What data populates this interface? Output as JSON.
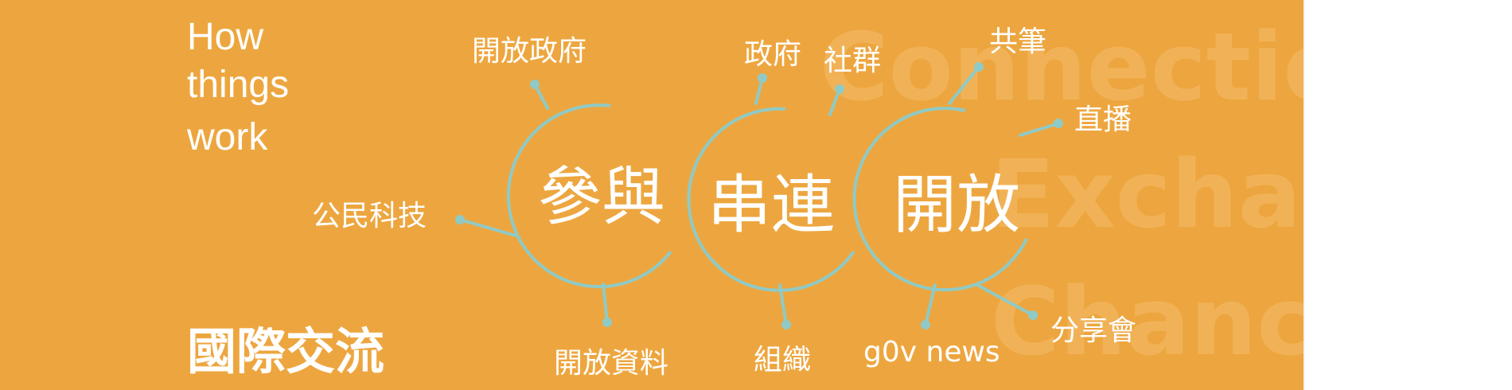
{
  "title_lines": [
    "How",
    "things",
    "work"
  ],
  "ghost_words": [
    "Connection",
    "Exchange",
    "Chance"
  ],
  "hub_words": [
    "參與",
    "串連",
    "開放"
  ],
  "labels": {
    "open_government": "開放政府",
    "civic_tech": "公民科技",
    "open_data": "開放資料",
    "government": "政府",
    "community": "社群",
    "organization": "組織",
    "collaboration": "共筆",
    "livestream": "直播",
    "sharing_session": "分享會",
    "g0v_news": "g0v news"
  },
  "footer_title": "國際交流",
  "colors": {
    "background": "#eda63f",
    "accent": "#8fcac6",
    "text": "#ffffff",
    "ghost_text": "#f1b257"
  }
}
